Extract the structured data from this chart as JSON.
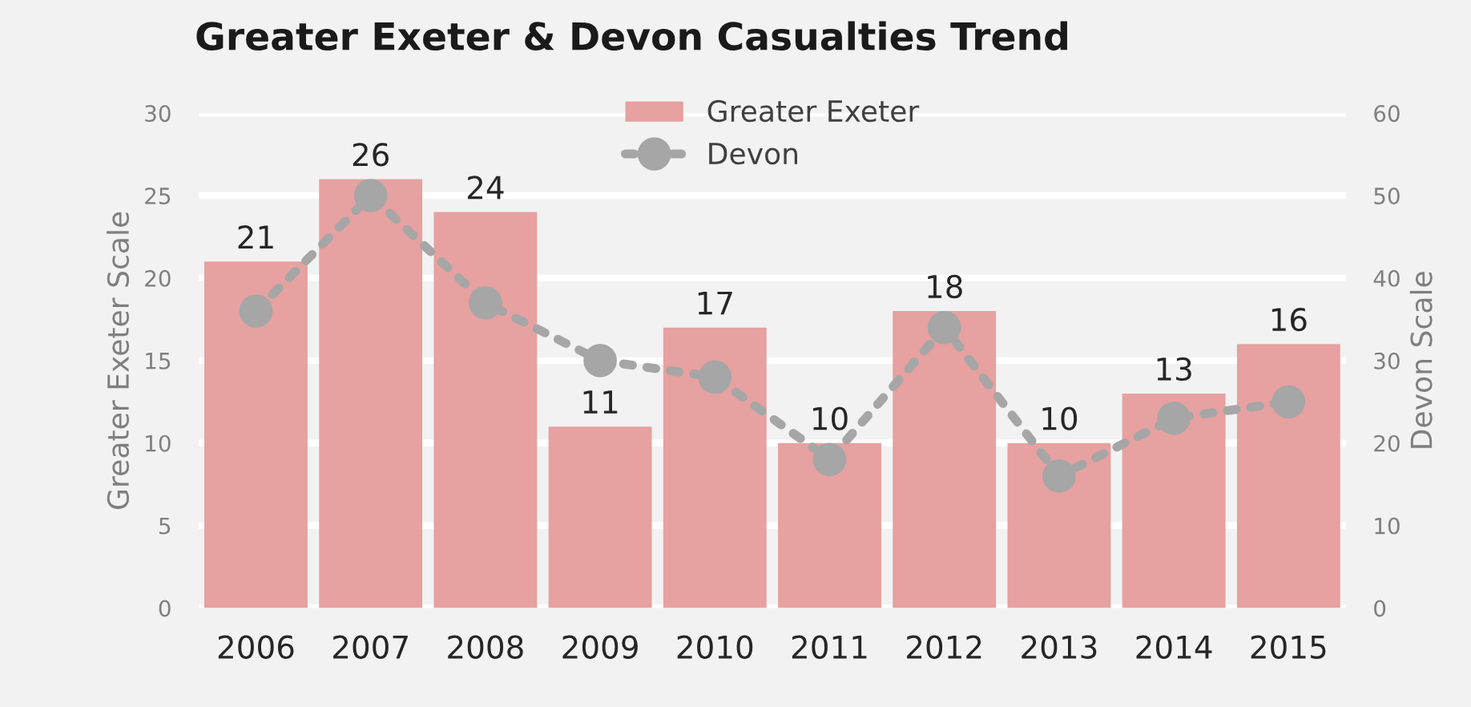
{
  "chart_data": {
    "type": "bar",
    "title": "Greater Exeter & Devon Casualties Trend",
    "categories": [
      "2006",
      "2007",
      "2008",
      "2009",
      "2010",
      "2011",
      "2012",
      "2013",
      "2014",
      "2015"
    ],
    "series": [
      {
        "name": "Greater Exeter",
        "color": "#e6a1a0",
        "values": [
          21,
          26,
          24,
          11,
          17,
          10,
          18,
          10,
          13,
          16
        ],
        "data_labels": true
      },
      {
        "name": "Devon",
        "type": "line",
        "axis": "y2",
        "color": "#a6a6a6",
        "marker": "circle",
        "line_style": "dotted",
        "values": [
          36,
          50,
          37,
          30,
          28,
          18,
          34,
          16,
          23,
          25
        ]
      }
    ],
    "ylabel": "Greater Exeter Scale",
    "y2label": "Devon Scale",
    "ylim": [
      0,
      30
    ],
    "yticks": [
      0,
      5,
      10,
      15,
      20,
      25,
      30
    ],
    "y2lim": [
      0,
      60
    ],
    "y2ticks": [
      0,
      10,
      20,
      30,
      40,
      50,
      60
    ],
    "grid": "y",
    "legend": "top"
  }
}
